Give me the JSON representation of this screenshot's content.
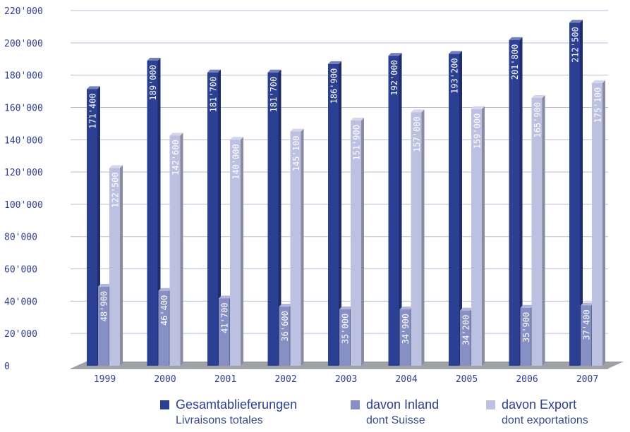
{
  "chart_data": {
    "type": "bar",
    "three_d": true,
    "grid": true,
    "legend_position": "bottom",
    "categories": [
      "1999",
      "2000",
      "2001",
      "2002",
      "2003",
      "2004",
      "2005",
      "2006",
      "2007"
    ],
    "y_ticks": [
      "0",
      "20'000",
      "40'000",
      "60'000",
      "80'000",
      "100'000",
      "120'000",
      "140'000",
      "160'000",
      "180'000",
      "200'000",
      "220'000"
    ],
    "ylim": [
      0,
      220000
    ],
    "series": [
      {
        "name": "Gesamtablieferungen",
        "subtitle": "Livraisons totales",
        "color": "#2b3f93",
        "values": [
          171400,
          189000,
          181700,
          181700,
          186900,
          192000,
          193200,
          201800,
          212500
        ],
        "labels": [
          "171'400",
          "189'000",
          "181'700",
          "181'700",
          "186'900",
          "192'000",
          "193'200",
          "201'800",
          "212'500"
        ]
      },
      {
        "name": "davon Inland",
        "subtitle": "dont Suisse",
        "color": "#8790c4",
        "values": [
          48900,
          46400,
          41700,
          36600,
          35000,
          34900,
          34200,
          35900,
          37400
        ],
        "labels": [
          "48'900",
          "46'400",
          "41'700",
          "36'600",
          "35'000",
          "34'900",
          "34'200",
          "35'900",
          "37'400"
        ]
      },
      {
        "name": "davon Export",
        "subtitle": "dont exportations",
        "color": "#bdc1e1",
        "values": [
          122500,
          142600,
          140000,
          145100,
          151900,
          157000,
          159000,
          165900,
          175100
        ],
        "labels": [
          "122'500",
          "142'600",
          "140'000",
          "145'100",
          "151'900",
          "157'000",
          "159'000",
          "165'900",
          "175'100"
        ]
      }
    ]
  }
}
